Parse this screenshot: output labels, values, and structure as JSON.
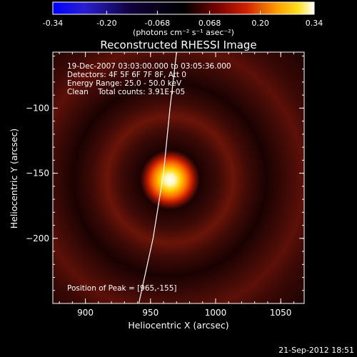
{
  "colorbar": {
    "tick_labels": [
      "-0.34",
      "-0.20",
      "-0.068",
      "0.068",
      "0.20",
      "0.34"
    ],
    "tick_values": [
      -0.34,
      -0.2,
      -0.068,
      0.068,
      0.2,
      0.34
    ],
    "range": [
      -0.34,
      0.34
    ],
    "unit_label": "(photons cm⁻² s⁻¹ asec⁻²)"
  },
  "title": "Reconstructed RHESSI Image",
  "info": {
    "time_range": "19-Dec-2007 03:03:00.000 to 03:05:36.000",
    "detectors": "Detectors: 4F 5F 6F 7F 8F, Att 0",
    "energy": "Energy Range: 25.0 - 50.0 keV",
    "clean": "Clean    Total counts: 3.91E+05",
    "peak": "Position of Peak = [965,-155]"
  },
  "axes": {
    "xlabel": "Heliocentric X (arcsec)",
    "ylabel": "Heliocentric Y (arcsec)",
    "xlim": [
      875,
      1068
    ],
    "ylim": [
      -250,
      -57
    ],
    "xticks": [
      {
        "value": 900,
        "label": "900"
      },
      {
        "value": 950,
        "label": "950"
      },
      {
        "value": 1000,
        "label": "1000"
      },
      {
        "value": 1050,
        "label": "1050"
      }
    ],
    "yticks": [
      {
        "value": -100,
        "label": "−100"
      },
      {
        "value": -150,
        "label": "−150"
      },
      {
        "value": -200,
        "label": "−200"
      }
    ]
  },
  "image": {
    "peak_x": 965,
    "peak_y": -155,
    "colormap": "blue-black-red-yellow-white",
    "limb_curve": [
      [
        941,
        -250
      ],
      [
        952,
        -200
      ],
      [
        960,
        -150
      ],
      [
        965,
        -100
      ],
      [
        970,
        -57
      ]
    ]
  },
  "timestamp": "21-Sep-2012 18:51"
}
